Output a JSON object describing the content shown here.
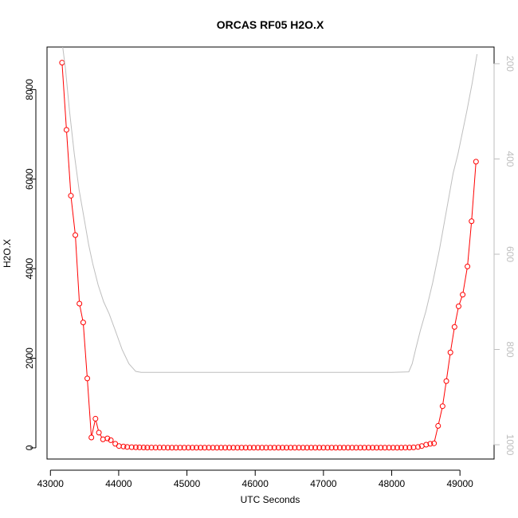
{
  "chart_data": {
    "type": "line",
    "title": "ORCAS RF05 H2O.X",
    "xlabel": "UTC Seconds",
    "ylabel": "H2O.X",
    "xlim": [
      42950,
      49500
    ],
    "ylim": [
      -250,
      8950
    ],
    "y2lim": [
      1030,
      165
    ],
    "y2_reversed": true,
    "x_ticks": [
      43000,
      44000,
      45000,
      46000,
      47000,
      48000,
      49000
    ],
    "y_ticks": [
      0,
      2000,
      4000,
      6000,
      8000
    ],
    "y2_ticks": [
      200,
      400,
      600,
      800,
      1000
    ],
    "grid": false,
    "series": [
      {
        "color": "#ff0000",
        "style": "line-with-open-circles",
        "axis": "left",
        "x": [
          43170,
          43235,
          43300,
          43365,
          43425,
          43480,
          43540,
          43600,
          43660,
          43710,
          43770,
          43835,
          43885,
          43950,
          44005,
          44070,
          44125,
          44190,
          44250,
          44305,
          44365,
          44420,
          44480,
          44540,
          44600,
          44660,
          44720,
          44780,
          44840,
          44900,
          44960,
          45020,
          45080,
          45140,
          45200,
          45260,
          45320,
          45380,
          45440,
          45500,
          45560,
          45620,
          45680,
          45740,
          45800,
          45860,
          45920,
          45980,
          46040,
          46100,
          46160,
          46220,
          46280,
          46340,
          46400,
          46460,
          46520,
          46580,
          46640,
          46700,
          46760,
          46820,
          46880,
          46940,
          47000,
          47060,
          47120,
          47180,
          47240,
          47300,
          47360,
          47420,
          47480,
          47540,
          47600,
          47660,
          47720,
          47780,
          47840,
          47900,
          47960,
          48020,
          48080,
          48140,
          48200,
          48260,
          48320,
          48385,
          48440,
          48505,
          48565,
          48620,
          48680,
          48745,
          48800,
          48860,
          48920,
          48980,
          49040,
          49110,
          49170,
          49235
        ],
        "y": [
          8600,
          7100,
          5630,
          4750,
          3220,
          2800,
          1550,
          230,
          650,
          340,
          190,
          210,
          170,
          90,
          40,
          30,
          20,
          15,
          12,
          10,
          8,
          6,
          5,
          5,
          5,
          5,
          4,
          4,
          4,
          4,
          4,
          4,
          4,
          4,
          4,
          4,
          4,
          4,
          4,
          4,
          4,
          4,
          4,
          4,
          4,
          4,
          4,
          4,
          4,
          4,
          4,
          4,
          4,
          4,
          4,
          4,
          4,
          4,
          4,
          4,
          4,
          4,
          4,
          4,
          4,
          4,
          4,
          4,
          4,
          4,
          4,
          4,
          4,
          4,
          4,
          4,
          4,
          4,
          4,
          4,
          4,
          4,
          4,
          4,
          5,
          6,
          10,
          20,
          40,
          70,
          90,
          100,
          490,
          930,
          1490,
          2130,
          2700,
          3160,
          3420,
          4050,
          5060,
          6390
        ]
      },
      {
        "color": "#bebebe",
        "style": "line",
        "axis": "right",
        "x": [
          43180,
          43220,
          43280,
          43350,
          43420,
          43500,
          43560,
          43620,
          43700,
          43780,
          43860,
          43950,
          44050,
          44150,
          44250,
          44330,
          44400,
          44500,
          45000,
          46000,
          47000,
          48000,
          48250,
          48300,
          48350,
          48420,
          48500,
          48600,
          48700,
          48800,
          48900,
          48970,
          49100,
          49180,
          49250
        ],
        "y": [
          165,
          210,
          300,
          390,
          465,
          530,
          580,
          620,
          665,
          700,
          725,
          760,
          800,
          830,
          846,
          848,
          848,
          848,
          848,
          848,
          848,
          848,
          847,
          830,
          800,
          760,
          720,
          660,
          590,
          510,
          430,
          390,
          300,
          240,
          180
        ]
      }
    ]
  }
}
